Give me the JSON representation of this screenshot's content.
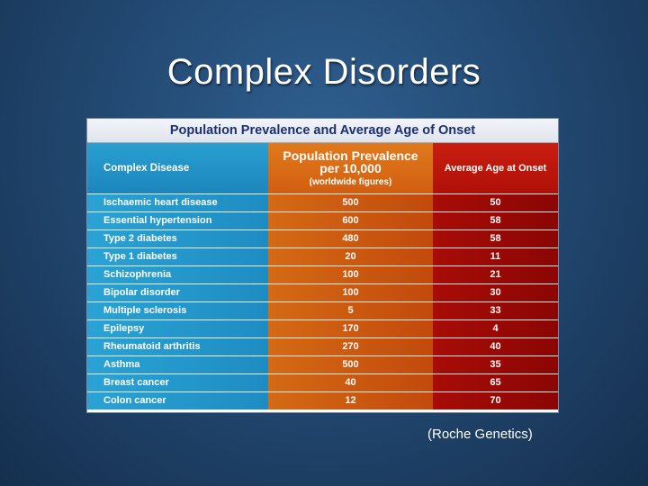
{
  "slide": {
    "title": "Complex Disorders",
    "citation": "(Roche Genetics)"
  },
  "table": {
    "title": "Population Prevalence and Average Age of Onset",
    "headers": {
      "disease": "Complex Disease",
      "prevalence_line1": "Population Prevalence",
      "prevalence_line2": "per 10,000",
      "prevalence_note": "(worldwide figures)",
      "age": "Average Age at Onset"
    },
    "rows": [
      {
        "disease": "Ischaemic heart disease",
        "prevalence": "500",
        "age": "50"
      },
      {
        "disease": "Essential hypertension",
        "prevalence": "600",
        "age": "58"
      },
      {
        "disease": "Type 2 diabetes",
        "prevalence": "480",
        "age": "58"
      },
      {
        "disease": "Type 1 diabetes",
        "prevalence": "20",
        "age": "11"
      },
      {
        "disease": "Schizophrenia",
        "prevalence": "100",
        "age": "21"
      },
      {
        "disease": "Bipolar disorder",
        "prevalence": "100",
        "age": "30"
      },
      {
        "disease": "Multiple sclerosis",
        "prevalence": "5",
        "age": "33"
      },
      {
        "disease": "Epilepsy",
        "prevalence": "170",
        "age": "4"
      },
      {
        "disease": "Rheumatoid arthritis",
        "prevalence": "270",
        "age": "40"
      },
      {
        "disease": "Asthma",
        "prevalence": "500",
        "age": "35"
      },
      {
        "disease": "Breast cancer",
        "prevalence": "40",
        "age": "65"
      },
      {
        "disease": "Colon cancer",
        "prevalence": "12",
        "age": "70"
      }
    ]
  },
  "colors": {
    "disease_column": "#1e8cc2",
    "prevalence_column": "#d25e10",
    "age_column": "#a80c06",
    "table_title_text": "#1c2f73"
  }
}
